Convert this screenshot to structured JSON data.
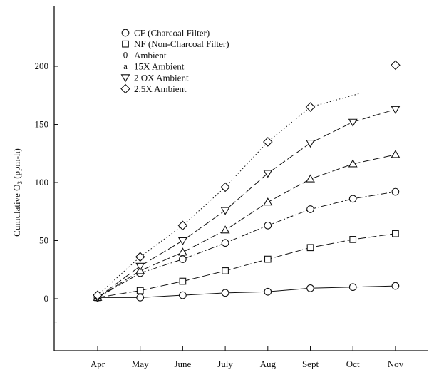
{
  "chart_data": {
    "type": "line",
    "title": "",
    "xlabel": "",
    "ylabel": "Cumulative O",
    "ylabel_subscript": "3",
    "ylabel_unit": " (ppm-h)",
    "categories": [
      "Apr",
      "May",
      "June",
      "July",
      "Aug",
      "Sept",
      "Oct",
      "Nov"
    ],
    "ylim": [
      -40,
      240
    ],
    "yticks": [
      0,
      50,
      100,
      150,
      200
    ],
    "grid": false,
    "legend_position": "top-left",
    "legend": [
      {
        "marker": "circle",
        "label": "CF (Charcoal Filter)"
      },
      {
        "marker": "square",
        "label": "NF (Non-Charcoal Filter)"
      },
      {
        "marker": "text",
        "symbol": "0",
        "label": "Ambient"
      },
      {
        "marker": "text",
        "symbol": "a",
        "label": "15X Ambient"
      },
      {
        "marker": "triangle-down",
        "label": "2 OX Ambient"
      },
      {
        "marker": "diamond",
        "label": "2.5X Ambient"
      }
    ],
    "series": [
      {
        "marker": "circle",
        "dash": "solid",
        "values": [
          1,
          1,
          3,
          5,
          6,
          9,
          10,
          11
        ]
      },
      {
        "marker": "square",
        "dash": "dash-long",
        "values": [
          1,
          7,
          15,
          24,
          34,
          44,
          51,
          56
        ]
      },
      {
        "marker": "circle",
        "dash": "dash-dot",
        "values": [
          1,
          22,
          34,
          48,
          63,
          77,
          86,
          92
        ]
      },
      {
        "marker": "triangle-up",
        "dash": "dash-long",
        "values": [
          1,
          24,
          40,
          59,
          83,
          103,
          116,
          124
        ]
      },
      {
        "marker": "triangle-down",
        "dash": "dash-long",
        "values": [
          1,
          28,
          50,
          76,
          108,
          134,
          152,
          163
        ]
      },
      {
        "marker": "diamond",
        "dash": "dotted",
        "values": [
          3,
          36,
          63,
          96,
          135,
          165,
          null,
          201
        ],
        "line_end": [
          6.2,
          177
        ]
      }
    ]
  }
}
